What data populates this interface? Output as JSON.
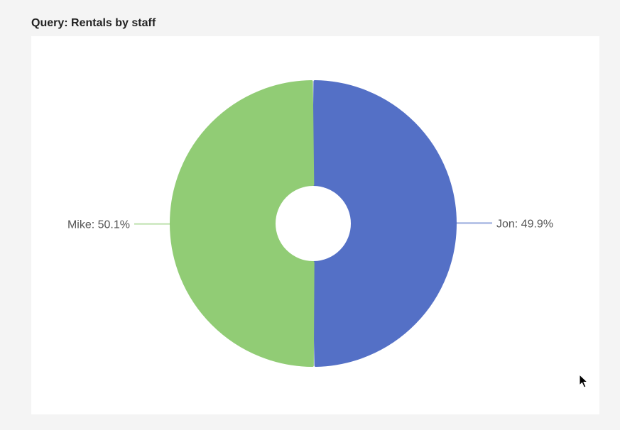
{
  "panel": {
    "title": "Query: Rentals by staff"
  },
  "chart_data": {
    "type": "pie",
    "style": "donut",
    "slices": [
      {
        "label": "Jon",
        "percent": 49.9,
        "display": "Jon: 49.9%",
        "color": "#5470c6"
      },
      {
        "label": "Mike",
        "percent": 50.1,
        "display": "Mike: 50.1%",
        "color": "#91cc75"
      }
    ],
    "legend": "none"
  }
}
